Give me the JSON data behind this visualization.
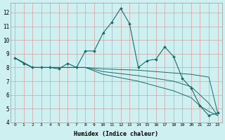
{
  "xlabel": "Humidex (Indice chaleur)",
  "bg_color": "#cff0f0",
  "grid_color_major": "#e8b0b0",
  "grid_color_minor": "#e8c8c8",
  "line_color": "#1a6b6b",
  "xlim": [
    -0.5,
    23.5
  ],
  "ylim": [
    4,
    12.7
  ],
  "yticks": [
    4,
    5,
    6,
    7,
    8,
    9,
    10,
    11,
    12
  ],
  "xticks": [
    0,
    1,
    2,
    3,
    4,
    5,
    6,
    7,
    8,
    9,
    10,
    11,
    12,
    13,
    14,
    15,
    16,
    17,
    18,
    19,
    20,
    21,
    22,
    23
  ],
  "series1": [
    [
      0,
      8.7
    ],
    [
      1,
      8.3
    ],
    [
      2,
      8.0
    ],
    [
      3,
      8.0
    ],
    [
      4,
      8.0
    ],
    [
      5,
      7.9
    ],
    [
      6,
      8.3
    ],
    [
      7,
      8.0
    ],
    [
      8,
      9.2
    ],
    [
      9,
      9.2
    ],
    [
      10,
      10.5
    ],
    [
      11,
      11.3
    ],
    [
      12,
      12.3
    ],
    [
      13,
      11.2
    ],
    [
      14,
      8.0
    ],
    [
      15,
      8.5
    ],
    [
      16,
      8.6
    ],
    [
      17,
      9.5
    ],
    [
      18,
      8.8
    ],
    [
      19,
      7.2
    ],
    [
      20,
      6.5
    ],
    [
      21,
      5.2
    ],
    [
      22,
      4.5
    ],
    [
      23,
      4.7
    ]
  ],
  "line2": [
    [
      0,
      8.7
    ],
    [
      2,
      8.0
    ],
    [
      4,
      8.0
    ],
    [
      6,
      8.0
    ],
    [
      8,
      8.0
    ],
    [
      10,
      7.9
    ],
    [
      14,
      7.8
    ],
    [
      18,
      7.6
    ],
    [
      20,
      7.5
    ],
    [
      21,
      7.4
    ],
    [
      22,
      7.3
    ],
    [
      23,
      4.7
    ]
  ],
  "line3": [
    [
      0,
      8.7
    ],
    [
      2,
      8.0
    ],
    [
      4,
      8.0
    ],
    [
      6,
      8.0
    ],
    [
      8,
      8.0
    ],
    [
      10,
      7.7
    ],
    [
      14,
      7.4
    ],
    [
      18,
      7.0
    ],
    [
      20,
      6.6
    ],
    [
      21,
      6.0
    ],
    [
      22,
      5.4
    ],
    [
      23,
      4.5
    ]
  ],
  "line4": [
    [
      0,
      8.7
    ],
    [
      2,
      8.0
    ],
    [
      4,
      8.0
    ],
    [
      6,
      8.0
    ],
    [
      8,
      8.0
    ],
    [
      10,
      7.5
    ],
    [
      14,
      7.0
    ],
    [
      18,
      6.3
    ],
    [
      20,
      5.8
    ],
    [
      21,
      5.2
    ],
    [
      22,
      4.8
    ],
    [
      23,
      4.5
    ]
  ]
}
